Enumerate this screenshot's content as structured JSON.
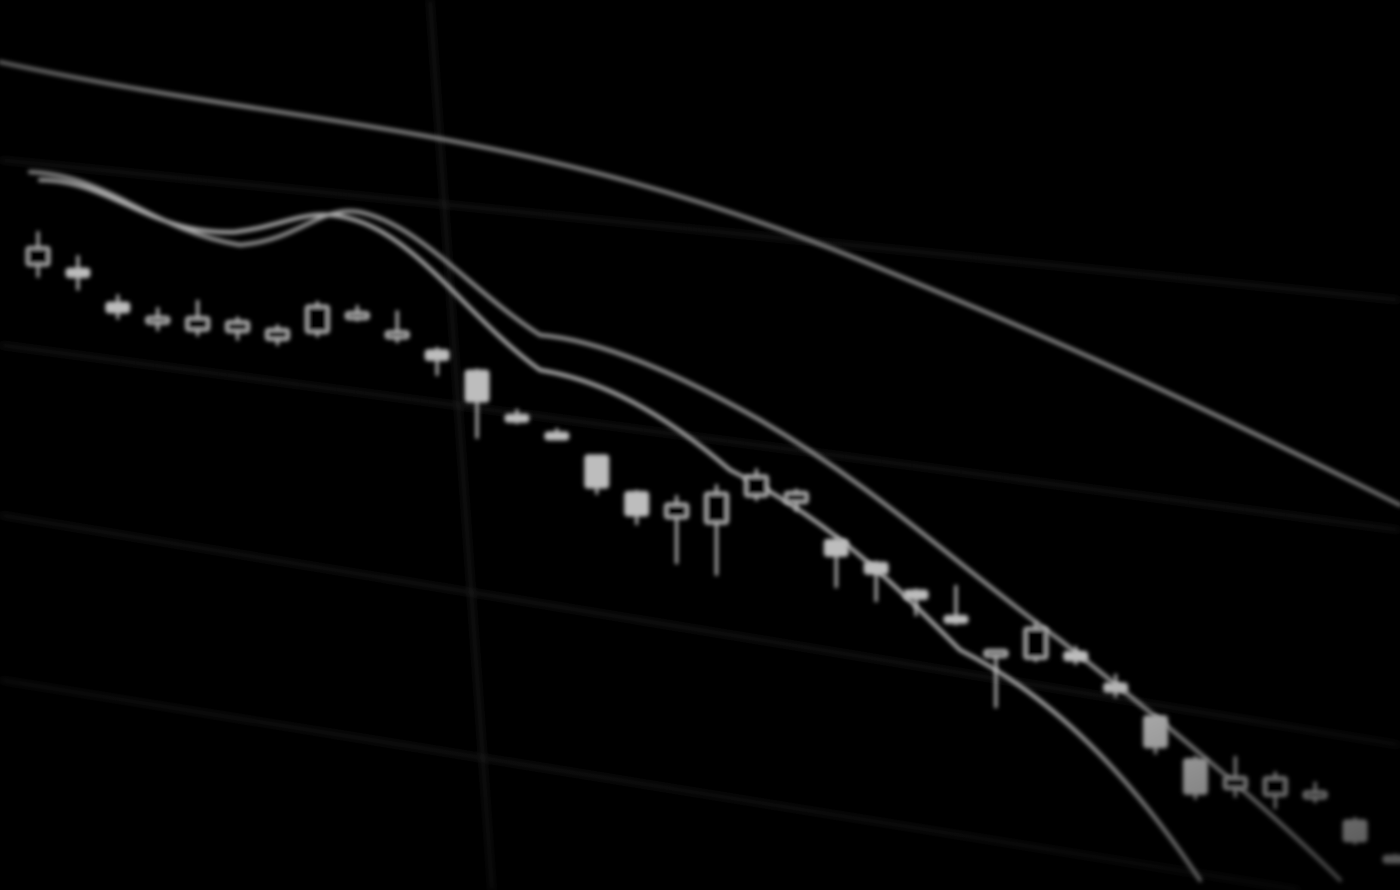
{
  "image": {
    "subject": "blurred-candlestick-screen",
    "background_color": "#000000",
    "candle_color": "#bdbdbd",
    "moving_average_color": "#9a9a9a",
    "grid_color": "#2e2e2e",
    "blur": "soft"
  },
  "chart_data": {
    "type": "scatter",
    "title": "",
    "xlabel": "",
    "ylabel": "",
    "note_visible_labels": "",
    "series": [
      {
        "kind": "candlestick",
        "candles": [
          {
            "open": 198,
            "close": 212,
            "high": 225,
            "low": 188
          },
          {
            "open": 203,
            "close": 197,
            "high": 214,
            "low": 186
          },
          {
            "open": 184,
            "close": 177,
            "high": 191,
            "low": 171
          },
          {
            "open": 177,
            "close": 181,
            "high": 189,
            "low": 170
          },
          {
            "open": 179,
            "close": 189,
            "high": 203,
            "low": 174
          },
          {
            "open": 186,
            "close": 194,
            "high": 198,
            "low": 179
          },
          {
            "open": 188,
            "close": 196,
            "high": 200,
            "low": 183
          },
          {
            "open": 202,
            "close": 223,
            "high": 227,
            "low": 198
          },
          {
            "open": 224,
            "close": 226,
            "high": 232,
            "low": 219
          },
          {
            "open": 218,
            "close": 219,
            "high": 236,
            "low": 210
          },
          {
            "open": 212,
            "close": 205,
            "high": 215,
            "low": 192
          },
          {
            "open": 204,
            "close": 180,
            "high": 206,
            "low": 150
          },
          {
            "open": 177,
            "close": 175,
            "high": 182,
            "low": 170
          },
          {
            "open": 171,
            "close": 170,
            "high": 175,
            "low": 165
          },
          {
            "open": 161,
            "close": 136,
            "high": 162,
            "low": 130
          },
          {
            "open": 140,
            "close": 122,
            "high": 142,
            "low": 114
          },
          {
            "open": 128,
            "close": 139,
            "high": 146,
            "low": 91
          },
          {
            "open": 132,
            "close": 156,
            "high": 163,
            "low": 90
          },
          {
            "open": 162,
            "close": 178,
            "high": 184,
            "low": 158
          },
          {
            "open": 165,
            "close": 173,
            "high": 176,
            "low": 158
          },
          {
            "open": 143,
            "close": 131,
            "high": 146,
            "low": 105
          },
          {
            "open": 133,
            "close": 125,
            "high": 135,
            "low": 102
          },
          {
            "open": 119,
            "close": 113,
            "high": 121,
            "low": 99
          },
          {
            "open": 107,
            "close": 106,
            "high": 132,
            "low": 100
          },
          {
            "open": 87,
            "close": 88,
            "high": 89,
            "low": 42
          },
          {
            "open": 90,
            "close": 114,
            "high": 119,
            "low": 87
          },
          {
            "open": 103,
            "close": 97,
            "high": 108,
            "low": 93
          },
          {
            "open": 86,
            "close": 80,
            "high": 94,
            "low": 75
          },
          {
            "open": 68,
            "close": 44,
            "high": 70,
            "low": 38
          },
          {
            "open": 42,
            "close": 15,
            "high": 45,
            "low": 10
          },
          {
            "open": 27,
            "close": 36,
            "high": 53,
            "low": 20
          },
          {
            "open": 30,
            "close": 44,
            "high": 49,
            "low": 19
          },
          {
            "open": 41,
            "close": 41,
            "high": 49,
            "low": 32
          },
          {
            "open": 26,
            "close": 10,
            "high": 29,
            "low": 7
          },
          {
            "open": 6,
            "close": 2,
            "high": 8,
            "low": 0
          }
        ]
      },
      {
        "kind": "moving-average-fast"
      },
      {
        "kind": "moving-average-slow"
      },
      {
        "kind": "moving-average-long"
      }
    ]
  }
}
